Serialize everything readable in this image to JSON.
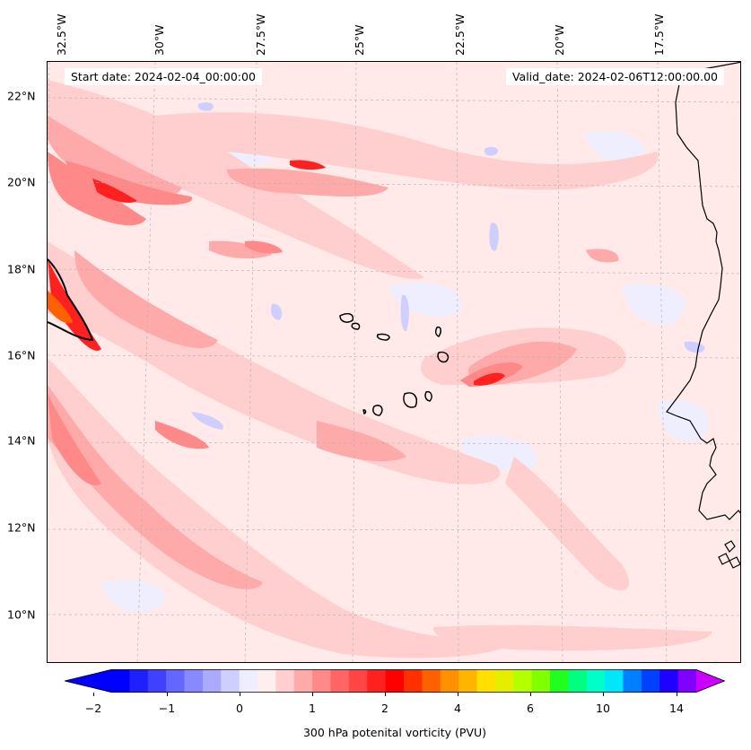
{
  "map": {
    "start_date_text": "Start date: 2024-02-04_00:00:00",
    "valid_date_text": "Valid_date: 2024-02-06T12:00:00.00",
    "lon_labels": [
      "32.5°W",
      "30°W",
      "27.5°W",
      "25°W",
      "22.5°W",
      "20°W",
      "17.5°W"
    ],
    "lat_labels": [
      "22°N",
      "20°N",
      "18°N",
      "16°N",
      "14°N",
      "12°N",
      "10°N"
    ],
    "background_color": "#ffe9e9",
    "coastline_color": "#000000"
  },
  "colorbar": {
    "label": "300 hPa potenital vorticity (PVU)",
    "tick_labels": [
      "−2",
      "−1",
      "0",
      "1",
      "2",
      "4",
      "6",
      "10",
      "14"
    ],
    "colors": [
      "#0000ff",
      "#2020ff",
      "#4040ff",
      "#6565ff",
      "#8888ff",
      "#aaaaff",
      "#cfcfff",
      "#eeeeff",
      "#ffeeee",
      "#ffcfcf",
      "#ffaaaa",
      "#ff8888",
      "#ff6565",
      "#ff4545",
      "#ff2020",
      "#ff0000",
      "#ff3000",
      "#ff6000",
      "#ff9000",
      "#ffb400",
      "#ffe000",
      "#e6ee00",
      "#b4ff00",
      "#80ff00",
      "#20ff20",
      "#00ff80",
      "#00ffc8",
      "#00e6ff",
      "#0080ff",
      "#0040ff",
      "#2000ff",
      "#8000ff"
    ],
    "extend_min_color": "#0000ff",
    "extend_max_color": "#cc00ff"
  }
}
